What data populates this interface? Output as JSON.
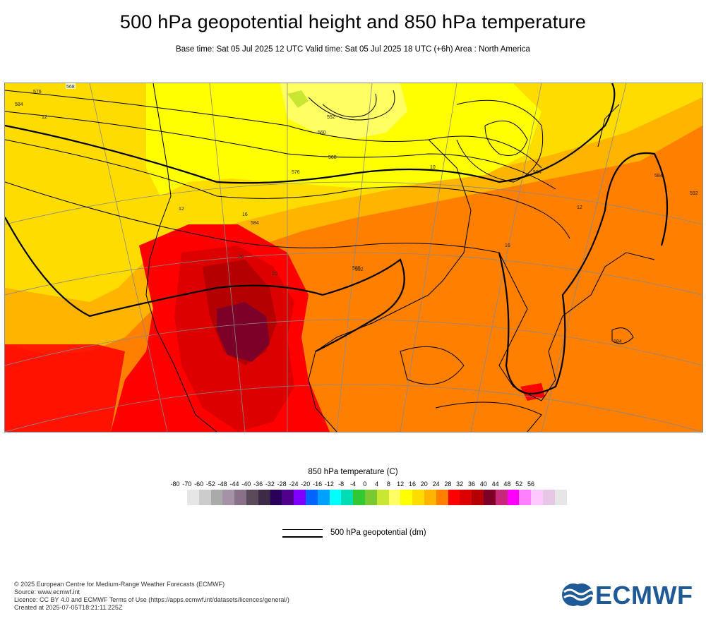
{
  "header": {
    "title": "500 hPa geopotential height and 850 hPa temperature",
    "subtitle": "Base time: Sat 05 Jul 2025 12 UTC Valid time: Sat 05 Jul 2025 18 UTC (+6h) Area : North America"
  },
  "map": {
    "contour_labels": [
      "568",
      "576",
      "584",
      "12",
      "552",
      "560",
      "568",
      "576",
      "584",
      "12",
      "16",
      "584",
      "588",
      "20",
      "20",
      "584",
      "16",
      "10",
      "584",
      "592",
      "12",
      "592"
    ]
  },
  "legend": {
    "title": "850 hPa temperature (C)",
    "ticks": [
      "-80",
      "-70",
      "-60",
      "-52",
      "-48",
      "-44",
      "-40",
      "-36",
      "-32",
      "-28",
      "-24",
      "-20",
      "-16",
      "-12",
      "-8",
      "-4",
      "0",
      "4",
      "8",
      "12",
      "16",
      "20",
      "24",
      "28",
      "32",
      "36",
      "40",
      "44",
      "48",
      "52",
      "56"
    ],
    "colors": [
      "#e6e6e6",
      "#cccccc",
      "#aaaaaa",
      "#a692a6",
      "#8a708a",
      "#5a4a5a",
      "#3c2a46",
      "#28005a",
      "#50008c",
      "#8000ff",
      "#0064ff",
      "#00a0ff",
      "#00ffff",
      "#00dcb4",
      "#32c832",
      "#7ac832",
      "#c8e632",
      "#ffff64",
      "#ffff00",
      "#ffdc00",
      "#ffb400",
      "#ff8000",
      "#ff0000",
      "#dc0000",
      "#b40000",
      "#7c0028",
      "#c8287a",
      "#ff00ff",
      "#ff80ff",
      "#ffc8ff",
      "#e6c8e6",
      "#e6e6e6"
    ],
    "geo_label": "500 hPa geopotential (dm)"
  },
  "credits": {
    "line1": "© 2025 European Centre for Medium-Range Weather Forecasts (ECMWF)",
    "line2": "Source: www.ecmwf.int",
    "line3": "Licence: CC BY 4.0 and ECMWF Terms of Use (https://apps.ecmwf.int/datasets/licences/general/)",
    "line4": "Created at 2025-07-05T18:21:11.225Z"
  },
  "logo": {
    "text": "ECMWF",
    "color": "#1f5a96"
  }
}
